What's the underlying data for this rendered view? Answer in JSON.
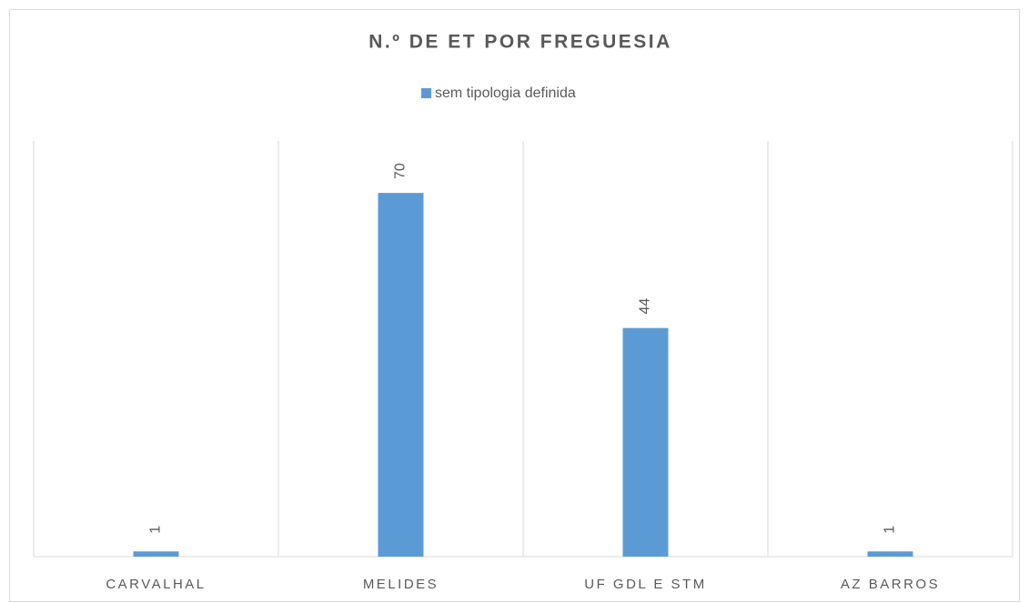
{
  "chart_data": {
    "type": "bar",
    "title": "N.º DE ET POR FREGUESIA",
    "categories": [
      "CARVALHAL",
      "MELIDES",
      "UF GDL E STM",
      "AZ BARROS"
    ],
    "series": [
      {
        "name": "sem tipologia definida",
        "color": "#5b9bd5",
        "values": [
          1,
          70,
          44,
          1
        ]
      }
    ],
    "ylim": [
      0,
      80
    ],
    "legend": "top",
    "data_labels": true
  }
}
